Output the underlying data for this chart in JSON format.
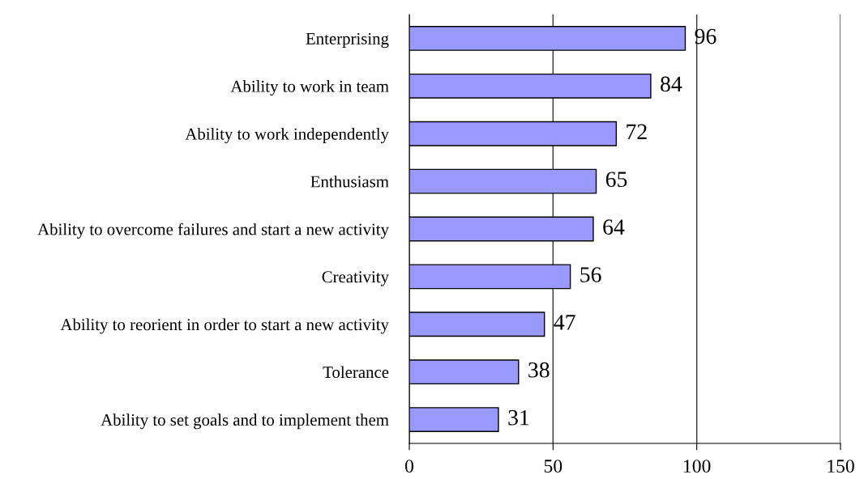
{
  "chart_data": {
    "type": "bar",
    "orientation": "horizontal",
    "categories": [
      "Enterprising",
      "Ability to work in team",
      "Ability to work independently",
      "Enthusiasm",
      "Ability to overcome failures and start a new activity",
      "Creativity",
      "Ability to reorient in order to start a new activity",
      "Tolerance",
      "Ability to set goals and to implement them"
    ],
    "values": [
      96,
      84,
      72,
      65,
      64,
      56,
      47,
      38,
      31
    ],
    "color": "#9999ff",
    "xlim": [
      0,
      150
    ],
    "xticks": [
      0,
      50,
      100,
      150
    ],
    "grid": "x",
    "data_labels": true
  }
}
